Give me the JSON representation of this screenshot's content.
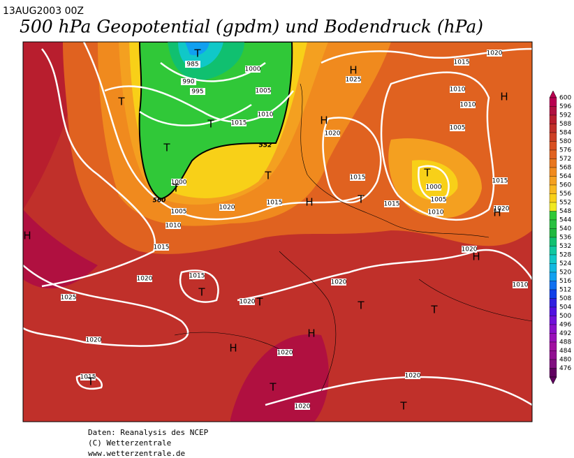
{
  "header": {
    "date": "13AUG2003 00Z",
    "title": "500 hPa Geopotential (gpdm) und Bodendruck (hPa)"
  },
  "colorbar": {
    "labels": [
      600,
      596,
      592,
      588,
      584,
      580,
      576,
      572,
      568,
      564,
      560,
      556,
      552,
      548,
      544,
      540,
      536,
      532,
      528,
      524,
      520,
      516,
      512,
      508,
      504,
      500,
      496,
      492,
      488,
      484,
      480,
      476
    ],
    "colors": [
      "#b80050",
      "#b01040",
      "#b81e2e",
      "#c0302a",
      "#cc4026",
      "#d85022",
      "#e06220",
      "#e8761e",
      "#f08a1e",
      "#f4a020",
      "#f8b820",
      "#f8d018",
      "#f0e820",
      "#30c838",
      "#28c040",
      "#20b840",
      "#10c070",
      "#10c8a0",
      "#10c8c8",
      "#10b8e0",
      "#10a0f0",
      "#1070f0",
      "#1040e8",
      "#3020e0",
      "#5010e0",
      "#7010d8",
      "#8810c8",
      "#9810b8",
      "#a010a0",
      "#901090",
      "#801080",
      "#600060"
    ]
  },
  "map": {
    "isobar_labels": [
      "985",
      "990",
      "995",
      "1000",
      "1005",
      "1010",
      "1015",
      "1000",
      "1005",
      "1010",
      "1015",
      "1020",
      "1015",
      "1020",
      "1025",
      "1015",
      "1020",
      "1020",
      "1015",
      "1020",
      "1020",
      "1020",
      "1020",
      "1015",
      "1015",
      "1020",
      "1025",
      "1020",
      "1015",
      "1010",
      "1010",
      "1005",
      "1000",
      "1005",
      "1010",
      "1015",
      "1020",
      "1020",
      "1010"
    ],
    "contour_labels": [
      "552",
      "560"
    ],
    "pressure_centers": [
      "T",
      "T",
      "T",
      "T",
      "T",
      "T",
      "H",
      "H",
      "H",
      "H",
      "T",
      "T",
      "H",
      "H",
      "H",
      "T",
      "T",
      "T",
      "T",
      "H",
      "H",
      "T",
      "T",
      "T"
    ]
  },
  "footer": {
    "lines": [
      "Daten: Reanalysis des NCEP",
      "(C) Wetterzentrale",
      "www.wetterzentrale.de"
    ]
  }
}
